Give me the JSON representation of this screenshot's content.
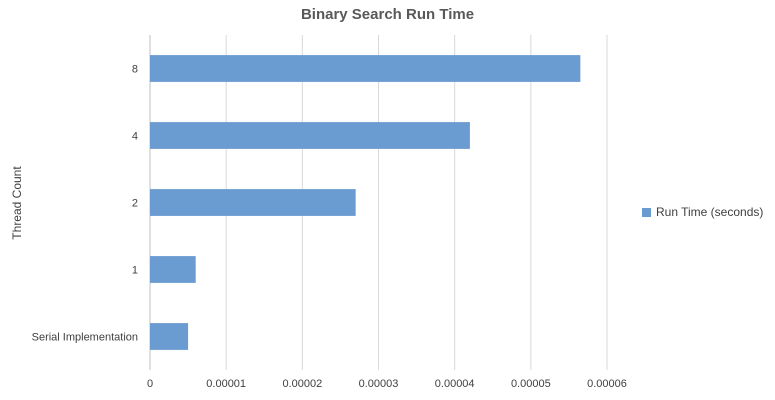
{
  "chart_data": {
    "type": "bar",
    "orientation": "horizontal",
    "title": "Binary Search Run Time",
    "ylabel": "Thread Count",
    "xlabel": "",
    "categories": [
      "Serial Implementation",
      "1",
      "2",
      "4",
      "8"
    ],
    "series": [
      {
        "name": "Run Time (seconds)",
        "color": "#6a9bd1",
        "values": [
          5e-06,
          6e-06,
          2.7e-05,
          4.2e-05,
          5.65e-05
        ]
      }
    ],
    "xlim": [
      0,
      6e-05
    ],
    "xticks": [
      "0",
      "0.00001",
      "0.00002",
      "0.00003",
      "0.00004",
      "0.00005",
      "0.00006"
    ],
    "grid": "vertical",
    "legend_position": "right"
  }
}
